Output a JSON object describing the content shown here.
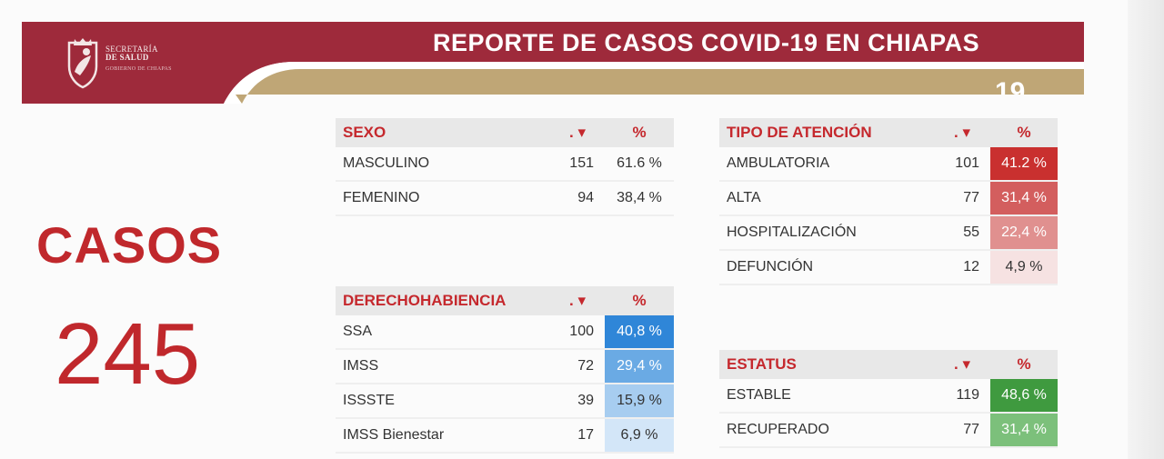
{
  "header": {
    "org_line1": "SECRETARÍA",
    "org_line2": "DE SALUD",
    "org_line3": "GOBIERNO DE CHIAPAS",
    "title": "REPORTE DE CASOS COVID-19 EN CHIAPAS",
    "title_number": "19",
    "colors": {
      "maroon": "#9e2a3b",
      "gold": "#bfa676"
    }
  },
  "casos": {
    "label": "CASOS",
    "value": "245"
  },
  "sexo": {
    "title": "SEXO",
    "count_header": ". ▾",
    "pct_header": "%",
    "rows": [
      {
        "label": "MASCULINO",
        "count": "151",
        "pct": "61.6 %"
      },
      {
        "label": "FEMENINO",
        "count": "94",
        "pct": "38,4 %"
      }
    ]
  },
  "atencion": {
    "title": "TIPO DE ATENCIÓN",
    "count_header": ". ▾",
    "pct_header": "%",
    "rows": [
      {
        "label": "AMBULATORIA",
        "count": "101",
        "pct": "41.2 %",
        "bg": "#c9302f",
        "fg": "#ffffff"
      },
      {
        "label": "ALTA",
        "count": "77",
        "pct": "31,4 %",
        "bg": "#d35e5e",
        "fg": "#ffffff"
      },
      {
        "label": "HOSPITALIZACIÓN",
        "count": "55",
        "pct": "22,4 %",
        "bg": "#e0908f",
        "fg": "#ffffff"
      },
      {
        "label": "DEFUNCIÓN",
        "count": "12",
        "pct": "4,9 %",
        "bg": "#f6e2e2",
        "fg": "#333333"
      }
    ]
  },
  "derecho": {
    "title": "DERECHOHABIENCIA",
    "count_header": ". ▾",
    "pct_header": "%",
    "rows": [
      {
        "label": "SSA",
        "count": "100",
        "pct": "40,8 %",
        "bg": "#2f86d8",
        "fg": "#ffffff"
      },
      {
        "label": "IMSS",
        "count": "72",
        "pct": "29,4 %",
        "bg": "#6aaae4",
        "fg": "#ffffff"
      },
      {
        "label": "ISSSTE",
        "count": "39",
        "pct": "15,9 %",
        "bg": "#a7cdf0",
        "fg": "#333333"
      },
      {
        "label": "IMSS Bienestar",
        "count": "17",
        "pct": "6,9 %",
        "bg": "#d3e6f8",
        "fg": "#333333"
      }
    ]
  },
  "estatus": {
    "title": "ESTATUS",
    "count_header": ". ▾",
    "pct_header": "%",
    "rows": [
      {
        "label": "ESTABLE",
        "count": "119",
        "pct": "48,6 %",
        "bg": "#3f9a3f",
        "fg": "#ffffff"
      },
      {
        "label": "RECUPERADO",
        "count": "77",
        "pct": "31,4 %",
        "bg": "#7cc07b",
        "fg": "#ffffff"
      }
    ]
  }
}
